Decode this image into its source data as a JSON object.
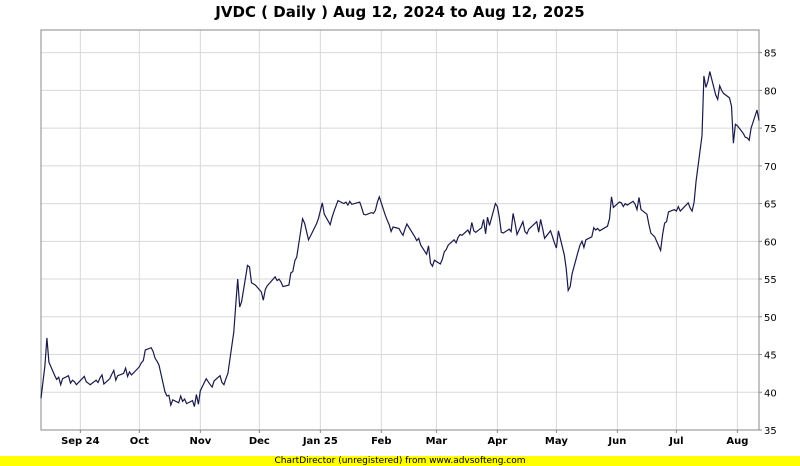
{
  "title": "JVDC ( Daily ) Aug 12, 2024 to Aug 12, 2025",
  "footer": "ChartDirector (unregistered) from www.advsofteng.com",
  "colors": {
    "line": "#1a1a4a",
    "grid": "#d8d8d8",
    "frame": "#888888",
    "footer_bg": "#ffff00"
  },
  "chart_data": {
    "type": "line",
    "title": "JVDC ( Daily ) Aug 12, 2024 to Aug 12, 2025",
    "xlabel": "",
    "ylabel": "",
    "ylim": [
      35,
      88
    ],
    "yticks": [
      35,
      40,
      45,
      50,
      55,
      60,
      65,
      70,
      75,
      80,
      85
    ],
    "y_axis_side": "right",
    "grid": true,
    "x_tick_labels": [
      {
        "label": "Sep 24",
        "date": "2024-09-01"
      },
      {
        "label": "Oct",
        "date": "2024-10-01"
      },
      {
        "label": "Nov",
        "date": "2024-11-01"
      },
      {
        "label": "Dec",
        "date": "2024-12-01"
      },
      {
        "label": "Jan 25",
        "date": "2025-01-01"
      },
      {
        "label": "Feb",
        "date": "2025-02-01"
      },
      {
        "label": "Mar",
        "date": "2025-03-01"
      },
      {
        "label": "Apr",
        "date": "2025-04-01"
      },
      {
        "label": "May",
        "date": "2025-05-01"
      },
      {
        "label": "Jun",
        "date": "2025-06-01"
      },
      {
        "label": "Jul",
        "date": "2025-07-01"
      },
      {
        "label": "Aug",
        "date": "2025-08-01"
      }
    ],
    "series": [
      {
        "points": [
          [
            "2024-08-12",
            39.2
          ],
          [
            "2024-08-14",
            43.5
          ],
          [
            "2024-08-15",
            47.2
          ],
          [
            "2024-08-16",
            44.0
          ],
          [
            "2024-08-19",
            42.2
          ],
          [
            "2024-08-20",
            41.7
          ],
          [
            "2024-08-21",
            42.0
          ],
          [
            "2024-08-22",
            41.0
          ],
          [
            "2024-08-23",
            41.8
          ],
          [
            "2024-08-26",
            42.2
          ],
          [
            "2024-08-27",
            41.2
          ],
          [
            "2024-08-28",
            41.6
          ],
          [
            "2024-08-29",
            41.4
          ],
          [
            "2024-08-30",
            41.0
          ],
          [
            "2024-09-03",
            42.1
          ],
          [
            "2024-09-04",
            41.4
          ],
          [
            "2024-09-05",
            41.2
          ],
          [
            "2024-09-06",
            41.0
          ],
          [
            "2024-09-09",
            41.6
          ],
          [
            "2024-09-10",
            41.3
          ],
          [
            "2024-09-11",
            41.9
          ],
          [
            "2024-09-12",
            42.3
          ],
          [
            "2024-09-13",
            41.1
          ],
          [
            "2024-09-16",
            41.8
          ],
          [
            "2024-09-17",
            42.4
          ],
          [
            "2024-09-18",
            42.9
          ],
          [
            "2024-09-19",
            41.6
          ],
          [
            "2024-09-20",
            42.2
          ],
          [
            "2024-09-23",
            42.5
          ],
          [
            "2024-09-24",
            43.2
          ],
          [
            "2024-09-25",
            42.1
          ],
          [
            "2024-09-26",
            42.7
          ],
          [
            "2024-09-27",
            42.3
          ],
          [
            "2024-09-30",
            43.1
          ],
          [
            "2024-10-01",
            43.4
          ],
          [
            "2024-10-02",
            43.9
          ],
          [
            "2024-10-03",
            44.2
          ],
          [
            "2024-10-04",
            45.6
          ],
          [
            "2024-10-07",
            45.9
          ],
          [
            "2024-10-08",
            45.4
          ],
          [
            "2024-10-09",
            44.5
          ],
          [
            "2024-10-10",
            44.1
          ],
          [
            "2024-10-11",
            43.6
          ],
          [
            "2024-10-14",
            40.1
          ],
          [
            "2024-10-15",
            39.5
          ],
          [
            "2024-10-16",
            39.6
          ],
          [
            "2024-10-17",
            38.3
          ],
          [
            "2024-10-18",
            39.0
          ],
          [
            "2024-10-21",
            38.6
          ],
          [
            "2024-10-22",
            39.5
          ],
          [
            "2024-10-23",
            38.8
          ],
          [
            "2024-10-24",
            39.1
          ],
          [
            "2024-10-25",
            38.5
          ],
          [
            "2024-10-28",
            38.9
          ],
          [
            "2024-10-29",
            38.1
          ],
          [
            "2024-10-30",
            39.7
          ],
          [
            "2024-10-31",
            38.4
          ],
          [
            "2024-11-01",
            40.2
          ],
          [
            "2024-11-04",
            41.8
          ],
          [
            "2024-11-05",
            41.4
          ],
          [
            "2024-11-06",
            41.0
          ],
          [
            "2024-11-07",
            40.7
          ],
          [
            "2024-11-08",
            41.5
          ],
          [
            "2024-11-11",
            42.2
          ],
          [
            "2024-11-12",
            41.3
          ],
          [
            "2024-11-13",
            41.0
          ],
          [
            "2024-11-14",
            41.8
          ],
          [
            "2024-11-15",
            42.5
          ],
          [
            "2024-11-18",
            48.0
          ],
          [
            "2024-11-19",
            51.5
          ],
          [
            "2024-11-20",
            55.0
          ],
          [
            "2024-11-21",
            51.3
          ],
          [
            "2024-11-22",
            52.0
          ],
          [
            "2024-11-25",
            56.8
          ],
          [
            "2024-11-26",
            56.6
          ],
          [
            "2024-11-27",
            54.5
          ],
          [
            "2024-11-29",
            54.2
          ],
          [
            "2024-12-02",
            53.3
          ],
          [
            "2024-12-03",
            52.2
          ],
          [
            "2024-12-04",
            53.6
          ],
          [
            "2024-12-05",
            54.1
          ],
          [
            "2024-12-06",
            54.4
          ],
          [
            "2024-12-09",
            55.3
          ],
          [
            "2024-12-10",
            54.8
          ],
          [
            "2024-12-11",
            55.0
          ],
          [
            "2024-12-12",
            54.6
          ],
          [
            "2024-12-13",
            54.0
          ],
          [
            "2024-12-16",
            54.2
          ],
          [
            "2024-12-17",
            55.8
          ],
          [
            "2024-12-18",
            56.0
          ],
          [
            "2024-12-19",
            57.4
          ],
          [
            "2024-12-20",
            57.9
          ],
          [
            "2024-12-23",
            63.0
          ],
          [
            "2024-12-24",
            62.4
          ],
          [
            "2024-12-26",
            60.2
          ],
          [
            "2024-12-27",
            60.7
          ],
          [
            "2024-12-30",
            62.3
          ],
          [
            "2024-12-31",
            63.0
          ],
          [
            "2025-01-02",
            65.1
          ],
          [
            "2025-01-03",
            63.6
          ],
          [
            "2025-01-06",
            62.2
          ],
          [
            "2025-01-07",
            63.2
          ],
          [
            "2025-01-08",
            64.0
          ],
          [
            "2025-01-10",
            65.4
          ],
          [
            "2025-01-13",
            65.0
          ],
          [
            "2025-01-14",
            65.2
          ],
          [
            "2025-01-15",
            64.8
          ],
          [
            "2025-01-16",
            65.3
          ],
          [
            "2025-01-17",
            64.9
          ],
          [
            "2025-01-21",
            65.2
          ],
          [
            "2025-01-22",
            64.5
          ],
          [
            "2025-01-23",
            63.6
          ],
          [
            "2025-01-24",
            63.5
          ],
          [
            "2025-01-27",
            63.8
          ],
          [
            "2025-01-28",
            63.7
          ],
          [
            "2025-01-29",
            64.1
          ],
          [
            "2025-01-30",
            65.2
          ],
          [
            "2025-01-31",
            65.9
          ],
          [
            "2025-02-03",
            63.5
          ],
          [
            "2025-02-04",
            62.8
          ],
          [
            "2025-02-05",
            62.2
          ],
          [
            "2025-02-06",
            61.3
          ],
          [
            "2025-02-07",
            61.9
          ],
          [
            "2025-02-10",
            61.7
          ],
          [
            "2025-02-11",
            61.2
          ],
          [
            "2025-02-12",
            60.8
          ],
          [
            "2025-02-13",
            61.6
          ],
          [
            "2025-02-14",
            62.3
          ],
          [
            "2025-02-18",
            60.6
          ],
          [
            "2025-02-19",
            60.1
          ],
          [
            "2025-02-20",
            60.4
          ],
          [
            "2025-02-21",
            59.5
          ],
          [
            "2025-02-24",
            58.3
          ],
          [
            "2025-02-25",
            59.4
          ],
          [
            "2025-02-26",
            57.1
          ],
          [
            "2025-02-27",
            56.7
          ],
          [
            "2025-02-28",
            57.5
          ],
          [
            "2025-03-03",
            57.0
          ],
          [
            "2025-03-04",
            57.6
          ],
          [
            "2025-03-05",
            58.6
          ],
          [
            "2025-03-06",
            58.9
          ],
          [
            "2025-03-07",
            59.5
          ],
          [
            "2025-03-10",
            60.2
          ],
          [
            "2025-03-11",
            59.8
          ],
          [
            "2025-03-12",
            60.5
          ],
          [
            "2025-03-13",
            60.9
          ],
          [
            "2025-03-14",
            60.8
          ],
          [
            "2025-03-17",
            61.5
          ],
          [
            "2025-03-18",
            61.0
          ],
          [
            "2025-03-19",
            62.5
          ],
          [
            "2025-03-20",
            61.4
          ],
          [
            "2025-03-21",
            61.2
          ],
          [
            "2025-03-24",
            61.8
          ],
          [
            "2025-03-25",
            62.9
          ],
          [
            "2025-03-26",
            61.0
          ],
          [
            "2025-03-27",
            63.2
          ],
          [
            "2025-03-28",
            62.1
          ],
          [
            "2025-03-31",
            65.0
          ],
          [
            "2025-04-01",
            64.6
          ],
          [
            "2025-04-02",
            63.2
          ],
          [
            "2025-04-03",
            61.2
          ],
          [
            "2025-04-04",
            61.1
          ],
          [
            "2025-04-07",
            61.6
          ],
          [
            "2025-04-08",
            61.3
          ],
          [
            "2025-04-09",
            63.7
          ],
          [
            "2025-04-10",
            62.4
          ],
          [
            "2025-04-11",
            60.9
          ],
          [
            "2025-04-14",
            62.6
          ],
          [
            "2025-04-15",
            61.3
          ],
          [
            "2025-04-16",
            61.0
          ],
          [
            "2025-04-17",
            61.6
          ],
          [
            "2025-04-21",
            62.6
          ],
          [
            "2025-04-22",
            61.2
          ],
          [
            "2025-04-23",
            62.9
          ],
          [
            "2025-04-24",
            61.7
          ],
          [
            "2025-04-25",
            60.4
          ],
          [
            "2025-04-28",
            61.4
          ],
          [
            "2025-04-29",
            60.6
          ],
          [
            "2025-04-30",
            59.8
          ],
          [
            "2025-05-01",
            59.1
          ],
          [
            "2025-05-02",
            61.4
          ],
          [
            "2025-05-05",
            58.2
          ],
          [
            "2025-05-06",
            56.4
          ],
          [
            "2025-05-07",
            53.5
          ],
          [
            "2025-05-08",
            54.0
          ],
          [
            "2025-05-09",
            55.7
          ],
          [
            "2025-05-12",
            58.6
          ],
          [
            "2025-05-13",
            59.5
          ],
          [
            "2025-05-14",
            60.0
          ],
          [
            "2025-05-15",
            59.2
          ],
          [
            "2025-05-16",
            60.2
          ],
          [
            "2025-05-19",
            60.6
          ],
          [
            "2025-05-20",
            61.8
          ],
          [
            "2025-05-21",
            61.5
          ],
          [
            "2025-05-22",
            61.7
          ],
          [
            "2025-05-23",
            61.4
          ],
          [
            "2025-05-27",
            62.0
          ],
          [
            "2025-05-28",
            63.0
          ],
          [
            "2025-05-29",
            65.9
          ],
          [
            "2025-05-30",
            64.5
          ],
          [
            "2025-06-02",
            65.2
          ],
          [
            "2025-06-03",
            65.1
          ],
          [
            "2025-06-04",
            64.6
          ],
          [
            "2025-06-05",
            65.0
          ],
          [
            "2025-06-06",
            64.8
          ],
          [
            "2025-06-09",
            65.3
          ],
          [
            "2025-06-10",
            64.9
          ],
          [
            "2025-06-11",
            64.2
          ],
          [
            "2025-06-12",
            65.8
          ],
          [
            "2025-06-13",
            64.2
          ],
          [
            "2025-06-16",
            63.6
          ],
          [
            "2025-06-17",
            62.3
          ],
          [
            "2025-06-18",
            61.1
          ],
          [
            "2025-06-20",
            60.6
          ],
          [
            "2025-06-23",
            58.8
          ],
          [
            "2025-06-24",
            60.9
          ],
          [
            "2025-06-25",
            62.4
          ],
          [
            "2025-06-26",
            62.6
          ],
          [
            "2025-06-27",
            63.9
          ],
          [
            "2025-06-30",
            64.2
          ],
          [
            "2025-07-01",
            64.0
          ],
          [
            "2025-07-02",
            64.6
          ],
          [
            "2025-07-03",
            64.0
          ],
          [
            "2025-07-07",
            65.1
          ],
          [
            "2025-07-08",
            64.4
          ],
          [
            "2025-07-09",
            64.0
          ],
          [
            "2025-07-10",
            65.2
          ],
          [
            "2025-07-11",
            68.0
          ],
          [
            "2025-07-14",
            74.0
          ],
          [
            "2025-07-15",
            81.9
          ],
          [
            "2025-07-16",
            80.4
          ],
          [
            "2025-07-17",
            81.2
          ],
          [
            "2025-07-18",
            82.5
          ],
          [
            "2025-07-21",
            79.4
          ],
          [
            "2025-07-22",
            78.8
          ],
          [
            "2025-07-23",
            80.6
          ],
          [
            "2025-07-24",
            80.0
          ],
          [
            "2025-07-25",
            79.6
          ],
          [
            "2025-07-28",
            79.0
          ],
          [
            "2025-07-29",
            77.9
          ],
          [
            "2025-07-30",
            73.0
          ],
          [
            "2025-07-31",
            75.5
          ],
          [
            "2025-08-01",
            75.3
          ],
          [
            "2025-08-04",
            74.3
          ],
          [
            "2025-08-05",
            73.8
          ],
          [
            "2025-08-06",
            73.7
          ],
          [
            "2025-08-07",
            73.4
          ],
          [
            "2025-08-08",
            75.0
          ],
          [
            "2025-08-11",
            77.4
          ],
          [
            "2025-08-12",
            76.0
          ]
        ]
      }
    ]
  }
}
